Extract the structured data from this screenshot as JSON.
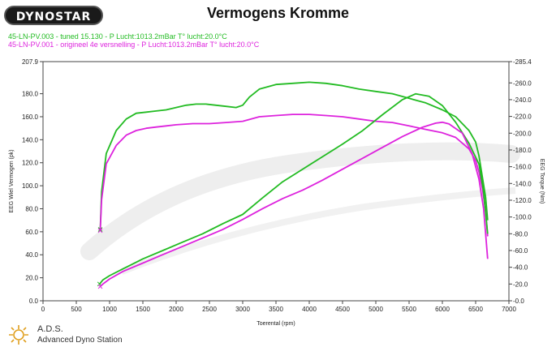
{
  "header": {
    "logo_text": "DYNOSTAR",
    "title": "Vermogens Kromme",
    "runs": [
      {
        "label": "45-LN-PV.003 - tuned 15.130  - P Lucht:1013.2mBar T° lucht:20.0°C",
        "color": "#22bb22"
      },
      {
        "label": "45-LN-PV.001 - origineel 4e versnelling  - P Lucht:1013.2mBar T° lucht:20.0°C",
        "color": "#dd22dd"
      }
    ]
  },
  "footer": {
    "name": "A.D.S.",
    "subtitle": "Advanced Dyno Station"
  },
  "chart_data": {
    "type": "line",
    "xlabel": "Toerental (rpm)",
    "ylabel": "EEG Wiel Vermogen (pk)",
    "y2label": "EEG Torque (Nm)",
    "xlim": [
      0,
      7000
    ],
    "ylim": [
      0,
      207.9
    ],
    "y2lim": [
      0,
      285.4
    ],
    "x_ticks": [
      0,
      500,
      1000,
      1500,
      2000,
      2500,
      3000,
      3500,
      4000,
      4500,
      5000,
      5500,
      6000,
      6500,
      7000
    ],
    "y_ticks": [
      0,
      20,
      40,
      60,
      80,
      100,
      120,
      140,
      160,
      180,
      207.9
    ],
    "y_tick_labels": [
      "0.0",
      "20.0",
      "40.0",
      "60.0",
      "80.0",
      "100.0",
      "120.0",
      "140.0",
      "160.0",
      "180.0",
      "207.9"
    ],
    "y2_ticks": [
      0,
      20,
      40,
      60,
      80,
      100,
      120,
      140,
      160,
      180,
      200,
      220,
      240,
      260,
      285.4
    ],
    "y2_tick_labels": [
      "-0.0",
      "-20.0",
      "-40.0",
      "-60.0",
      "-80.0",
      "-100.0",
      "-120.0",
      "-140.0",
      "-160.0",
      "-180.0",
      "-200.0",
      "-220.0",
      "-240.0",
      "-260.0",
      "-285.4"
    ],
    "grid": false,
    "series": [
      {
        "name": "45-LN-PV.003 - tuned 15.130",
        "axis": "left",
        "color": "#22bb22",
        "x": [
          860,
          880,
          950,
          1100,
          1250,
          1400,
          1550,
          1700,
          1850,
          2000,
          2150,
          2300,
          2450,
          2600,
          2750,
          2900,
          3000,
          3100,
          3250,
          3500,
          3750,
          4000,
          4250,
          4500,
          4750,
          5000,
          5250,
          5500,
          5750,
          6000,
          6200,
          6400,
          6500,
          6550,
          6600,
          6650,
          6680
        ],
        "values": [
          62,
          95,
          128,
          148,
          158,
          163,
          164,
          165,
          166,
          168,
          170,
          171,
          171,
          170,
          169,
          168,
          170,
          177,
          184,
          188,
          189,
          190,
          189,
          187,
          184,
          182,
          180,
          176,
          172,
          166,
          160,
          148,
          138,
          126,
          108,
          90,
          70
        ]
      },
      {
        "name": "45-LN-PV.001 - origineel 4e versnelling",
        "axis": "left",
        "color": "#dd22dd",
        "x": [
          860,
          880,
          950,
          1100,
          1250,
          1400,
          1550,
          1700,
          1850,
          2000,
          2250,
          2500,
          2750,
          3000,
          3250,
          3500,
          3750,
          4000,
          4250,
          4500,
          4750,
          5000,
          5250,
          5500,
          5750,
          6000,
          6200,
          6400,
          6500,
          6550,
          6600,
          6650,
          6680
        ],
        "values": [
          61,
          88,
          119,
          135,
          144,
          148,
          150,
          151,
          152,
          153,
          154,
          154,
          155,
          156,
          160,
          161,
          162,
          162,
          161,
          160,
          158,
          156,
          155,
          152,
          149,
          146,
          142,
          132,
          122,
          112,
          98,
          78,
          56
        ]
      },
      {
        "name": "45-LN-PV.003 - tuned 15.130",
        "axis": "right",
        "color": "#22bb22",
        "x": [
          850,
          900,
          1000,
          1200,
          1500,
          1800,
          2100,
          2400,
          2700,
          3000,
          3300,
          3600,
          3900,
          4200,
          4500,
          4800,
          5100,
          5400,
          5600,
          5800,
          6000,
          6200,
          6400,
          6550,
          6620,
          6680
        ],
        "values": [
          20,
          25,
          30,
          38,
          50,
          60,
          70,
          80,
          92,
          103,
          123,
          142,
          157,
          172,
          187,
          203,
          222,
          240,
          247,
          244,
          233,
          213,
          188,
          163,
          130,
          80
        ]
      },
      {
        "name": "45-LN-PV.001 - origineel 4e versnelling",
        "axis": "right",
        "color": "#dd22dd",
        "x": [
          860,
          900,
          1000,
          1200,
          1500,
          1800,
          2100,
          2400,
          2700,
          3000,
          3300,
          3600,
          3900,
          4200,
          4500,
          4800,
          5100,
          5400,
          5700,
          5900,
          6000,
          6100,
          6300,
          6450,
          6550,
          6620,
          6680
        ],
        "values": [
          17,
          20,
          26,
          35,
          45,
          55,
          65,
          75,
          85,
          97,
          110,
          122,
          132,
          144,
          157,
          170,
          183,
          196,
          207,
          212,
          213,
          211,
          200,
          175,
          145,
          110,
          50
        ]
      }
    ]
  }
}
